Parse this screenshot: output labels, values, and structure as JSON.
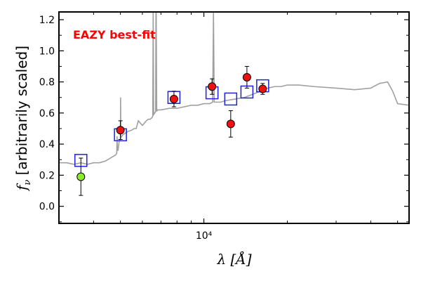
{
  "chart_data": {
    "type": "scatter",
    "title": "",
    "annotation": "EAZY best-fit",
    "annotation_color": "#ff0000",
    "xlabel": "λ [Å]",
    "ylabel": "f_ν [arbitrarily scaled]",
    "xscale": "log",
    "xlim": [
      3000,
      55000
    ],
    "ylim": [
      -0.11,
      1.25
    ],
    "yticks": [
      0.0,
      0.2,
      0.4,
      0.6,
      0.8,
      1.0,
      1.2
    ],
    "ytick_labels": [
      "0.0",
      "0.2",
      "0.4",
      "0.6",
      "0.8",
      "1.0",
      "1.2"
    ],
    "xticks": [
      10000
    ],
    "xtick_labels": [
      "10⁴"
    ],
    "grid": false,
    "colors": {
      "template": "#a0a0a0",
      "model_box": "#2020dd",
      "detection": "#ee1111",
      "outlier": "#88ee22",
      "errorbar": "#000000"
    },
    "template_spectrum": {
      "name": "EAZY best-fit",
      "x": [
        3000,
        3200,
        3400,
        3600,
        3800,
        4000,
        4200,
        4400,
        4500,
        4600,
        4700,
        4800,
        4850,
        4862,
        4875,
        4900,
        4950,
        5000,
        5007,
        5015,
        5100,
        5300,
        5500,
        5600,
        5700,
        5800,
        6000,
        6200,
        6300,
        6400,
        6500,
        6540,
        6563,
        6590,
        6650,
        6700,
        6716,
        6731,
        6760,
        6800,
        7000,
        7500,
        8000,
        8500,
        9000,
        9500,
        10000,
        10500,
        10760,
        10830,
        10900,
        11500,
        12000,
        13000,
        14000,
        15000,
        16000,
        17000,
        18000,
        19000,
        20000,
        22000,
        25000,
        30000,
        35000,
        40000,
        43000,
        46000,
        48000,
        50000,
        55000
      ],
      "y": [
        0.28,
        0.28,
        0.27,
        0.28,
        0.27,
        0.28,
        0.28,
        0.29,
        0.3,
        0.31,
        0.32,
        0.33,
        0.34,
        0.45,
        0.36,
        0.36,
        0.42,
        0.43,
        0.7,
        0.44,
        0.46,
        0.48,
        0.49,
        0.5,
        0.5,
        0.55,
        0.52,
        0.55,
        0.56,
        0.56,
        0.57,
        0.58,
        1.25,
        0.59,
        0.6,
        0.61,
        1.25,
        1.25,
        0.61,
        0.62,
        0.62,
        0.63,
        0.63,
        0.64,
        0.65,
        0.65,
        0.66,
        0.66,
        0.67,
        1.25,
        0.67,
        0.67,
        0.68,
        0.69,
        0.7,
        0.72,
        0.74,
        0.76,
        0.77,
        0.77,
        0.78,
        0.78,
        0.77,
        0.76,
        0.75,
        0.76,
        0.79,
        0.8,
        0.74,
        0.66,
        0.65
      ]
    },
    "model_photometry": {
      "name": "model photometry",
      "x": [
        3600,
        5000,
        7800,
        10700,
        12500,
        14300,
        16300
      ],
      "y": [
        0.295,
        0.46,
        0.7,
        0.73,
        0.69,
        0.735,
        0.775
      ]
    },
    "observed_photometry": {
      "name": "observed",
      "x": [
        3600,
        5000,
        7800,
        10700,
        12500,
        14300,
        16300
      ],
      "y": [
        0.19,
        0.49,
        0.69,
        0.77,
        0.53,
        0.83,
        0.755
      ],
      "yerr": [
        0.12,
        0.06,
        0.05,
        0.05,
        0.085,
        0.07,
        0.035
      ],
      "flag": [
        "outlier",
        "detection",
        "detection",
        "detection",
        "detection",
        "detection",
        "detection"
      ]
    }
  }
}
